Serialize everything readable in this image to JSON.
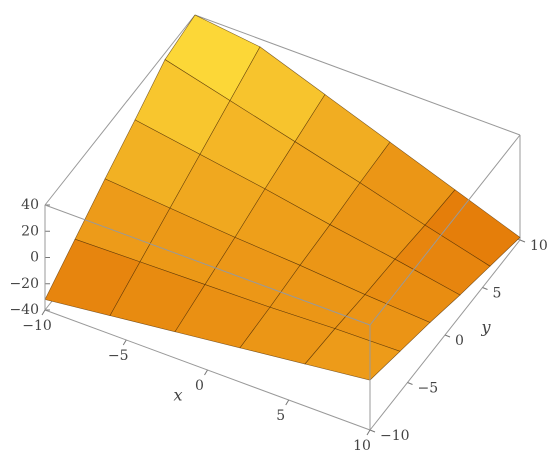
{
  "chart_data": {
    "type": "surface",
    "x": [
      -10,
      -6,
      -2,
      2,
      6,
      10
    ],
    "y": [
      -10,
      -6,
      -2,
      2,
      6,
      10
    ],
    "z": [
      [
        -32,
        -26,
        -20,
        -14,
        -8,
        -2
      ],
      [
        -15,
        -14,
        -13,
        -12,
        -10,
        -9
      ],
      [
        2,
        -2,
        -6,
        -9,
        -13,
        -16
      ],
      [
        18,
        10,
        2,
        -7,
        -15,
        -24
      ],
      [
        35,
        22,
        9,
        -4,
        -18,
        -31
      ],
      [
        40,
        34,
        16,
        -2,
        -20,
        -38
      ]
    ],
    "xlim": [
      -10,
      10
    ],
    "ylim": [
      -10,
      10
    ],
    "zlim": [
      -40,
      40
    ],
    "xticks": [
      {
        "value": -10,
        "label": "−10"
      },
      {
        "value": -5,
        "label": "−5"
      },
      0,
      5,
      10
    ],
    "yticks": [
      {
        "value": -10,
        "label": "−10"
      },
      {
        "value": -5,
        "label": "−5"
      },
      0,
      5,
      10
    ],
    "zticks": [
      {
        "value": -40,
        "label": "−40"
      },
      {
        "value": -20,
        "label": "−20"
      },
      0,
      20,
      40
    ],
    "xlabel": "x",
    "ylabel": "y",
    "color_low": "#e06a00",
    "color_high": "#ffe23c",
    "mesh_color": "#4a2a00"
  }
}
